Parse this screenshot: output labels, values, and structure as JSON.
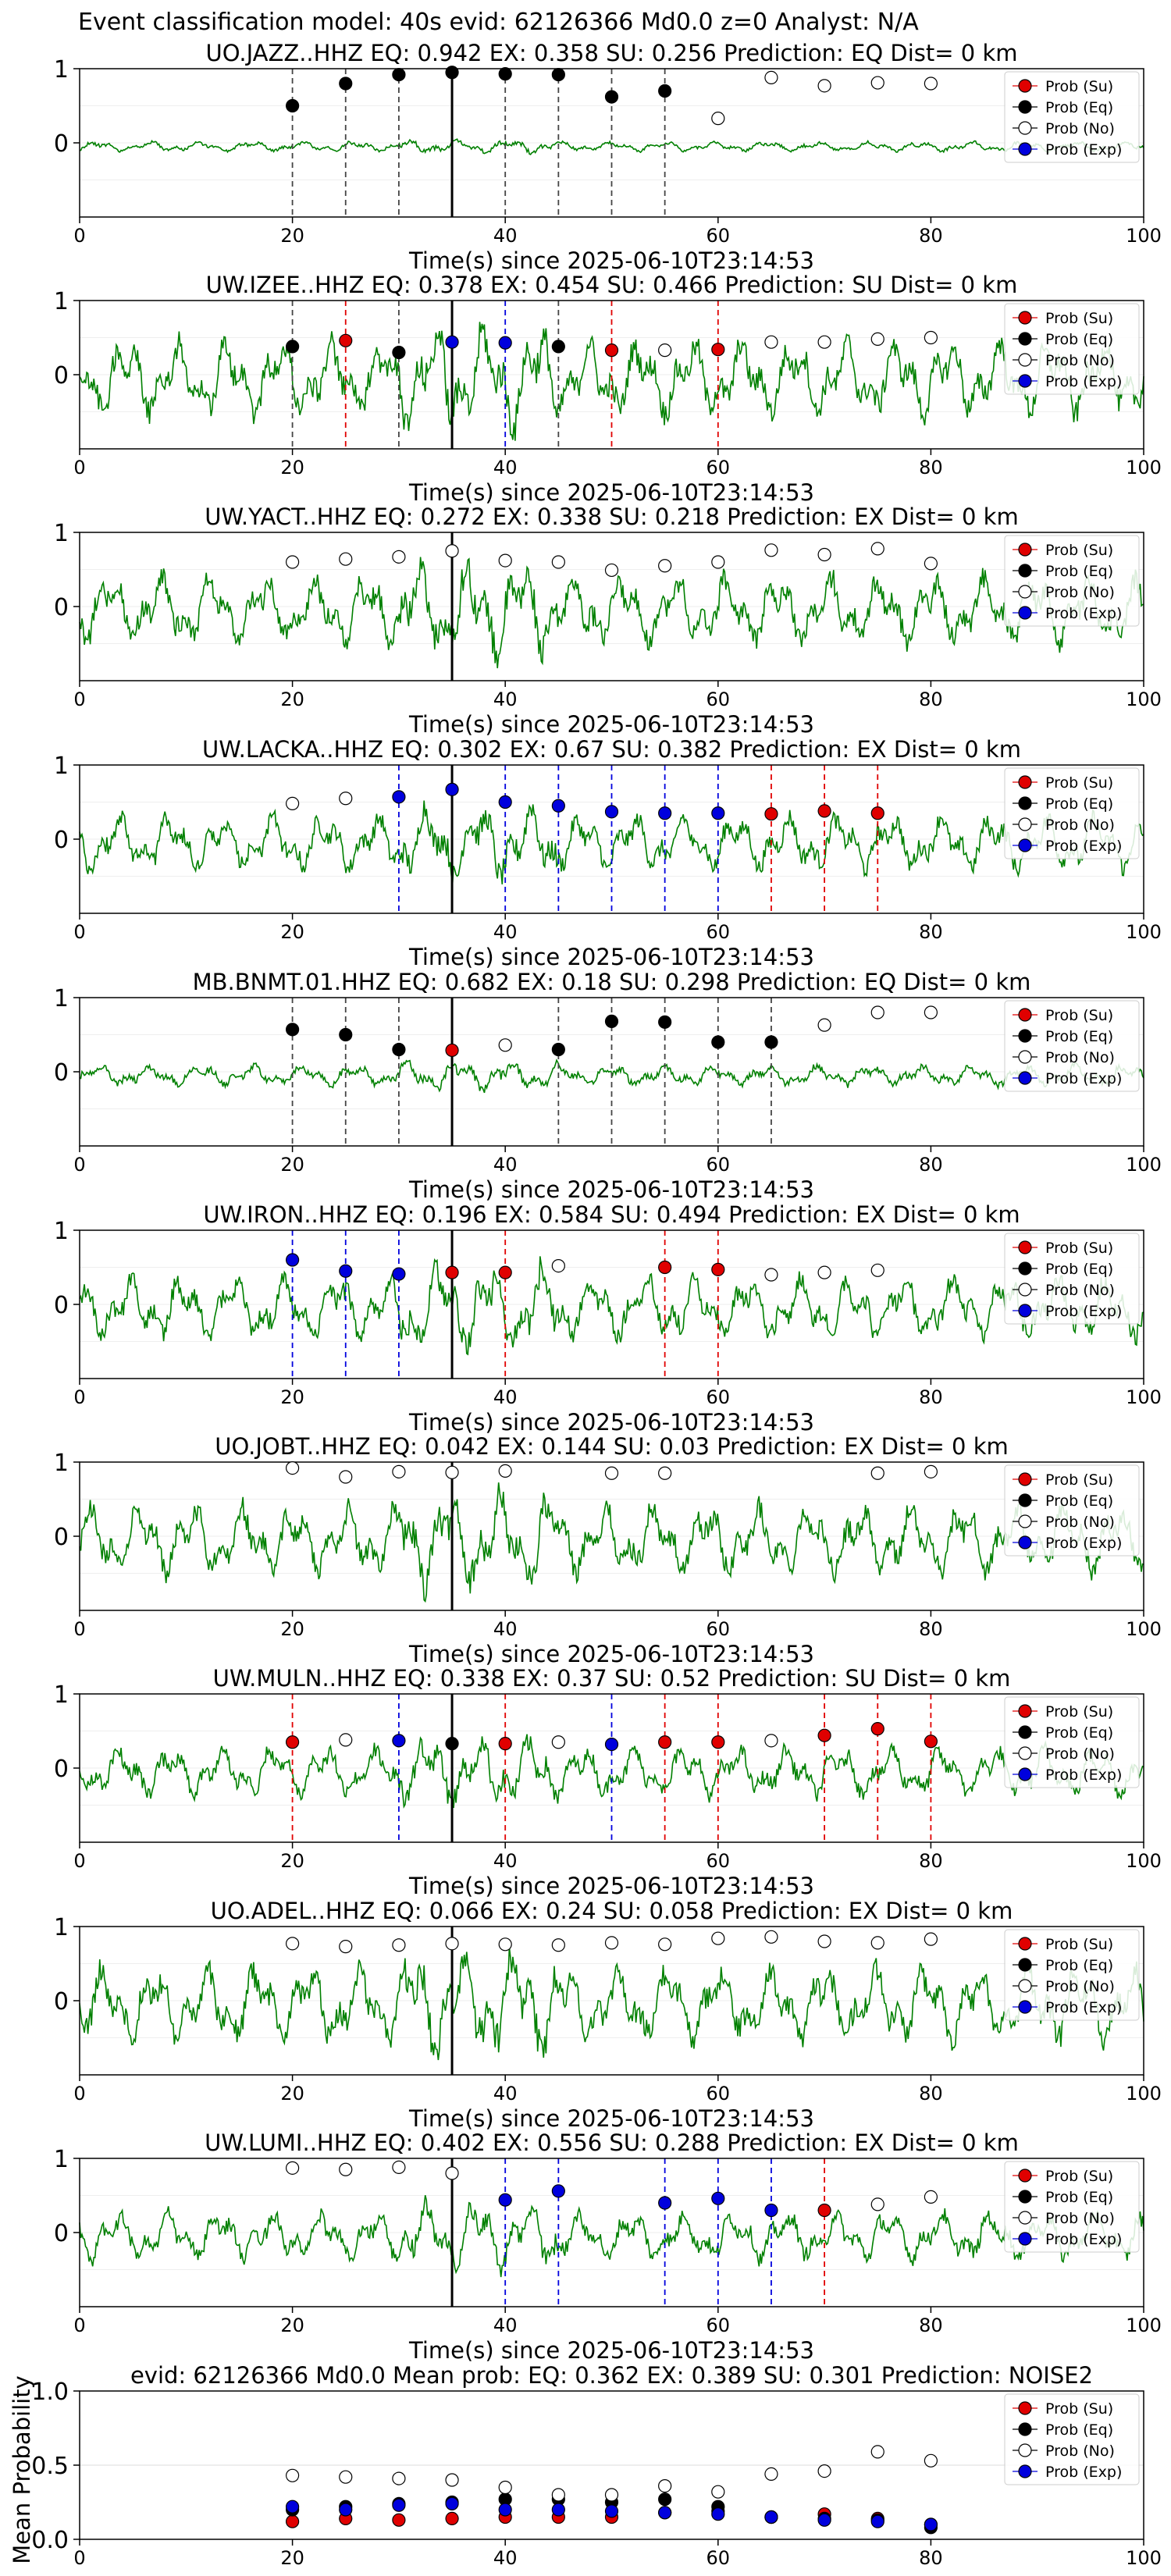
{
  "figure_title": "Event classification model: 40s evid: 62126366 Md0.0 z=0 Analyst: N/A",
  "legend_labels": [
    "Prob (Su)",
    "Prob (Eq)",
    "Prob (No)",
    "Prob (Exp)"
  ],
  "colors": {
    "su": "#e00000",
    "eq": "#000000",
    "no": "#ffffff",
    "exp": "#0000dd",
    "trace": "#008000"
  },
  "chart_data": [
    {
      "type": "line",
      "title": "UO.JAZZ..HHZ   EQ: 0.942  EX: 0.358  SU: 0.256   Prediction: EQ    Dist= 0 km",
      "xlabel": "Time(s) since 2025-06-10T23:14:53",
      "xlim": [
        0,
        100
      ],
      "ylim": [
        -1,
        1
      ],
      "xticks": [
        "0",
        "20",
        "40",
        "60",
        "80",
        "100"
      ],
      "yticks": [
        "1",
        "0"
      ],
      "amp": 0.07,
      "seed": 11,
      "eq": [
        [
          20,
          0.5
        ],
        [
          25,
          0.8
        ],
        [
          30,
          0.92
        ],
        [
          35,
          0.95
        ],
        [
          40,
          0.93
        ],
        [
          45,
          0.92
        ],
        [
          50,
          0.62
        ],
        [
          55,
          0.7
        ]
      ],
      "no": [
        [
          60,
          0.33
        ],
        [
          65,
          0.88
        ],
        [
          70,
          0.77
        ],
        [
          75,
          0.81
        ],
        [
          80,
          0.8
        ]
      ],
      "su": [],
      "exp": [],
      "vlines": [
        [
          20,
          "eq"
        ],
        [
          25,
          "eq"
        ],
        [
          30,
          "eq"
        ],
        [
          40,
          "eq"
        ],
        [
          45,
          "eq"
        ],
        [
          50,
          "eq"
        ],
        [
          55,
          "eq"
        ]
      ]
    },
    {
      "type": "line",
      "title": "UW.IZEE..HHZ   EQ: 0.378  EX: 0.454  SU: 0.466   Prediction: SU    Dist= 0 km",
      "xlabel": "Time(s) since 2025-06-10T23:14:53",
      "xlim": [
        0,
        100
      ],
      "ylim": [
        -1,
        1
      ],
      "xticks": [
        "0",
        "20",
        "40",
        "60",
        "80",
        "100"
      ],
      "yticks": [
        "1",
        "0"
      ],
      "amp": 0.55,
      "seed": 23,
      "eq": [
        [
          20,
          0.38
        ],
        [
          30,
          0.3
        ],
        [
          45,
          0.38
        ]
      ],
      "su": [
        [
          25,
          0.46
        ],
        [
          50,
          0.33
        ],
        [
          60,
          0.34
        ]
      ],
      "exp": [
        [
          35,
          0.44
        ],
        [
          40,
          0.43
        ]
      ],
      "no": [
        [
          55,
          0.33
        ],
        [
          65,
          0.44
        ],
        [
          70,
          0.44
        ],
        [
          75,
          0.48
        ],
        [
          80,
          0.5
        ]
      ],
      "vlines": [
        [
          20,
          "eq"
        ],
        [
          25,
          "su"
        ],
        [
          30,
          "eq"
        ],
        [
          40,
          "exp"
        ],
        [
          45,
          "eq"
        ],
        [
          50,
          "su"
        ],
        [
          60,
          "su"
        ]
      ]
    },
    {
      "type": "line",
      "title": "UW.YACT..HHZ   EQ: 0.272  EX: 0.338  SU: 0.218   Prediction: EX    Dist= 0 km",
      "xlabel": "Time(s) since 2025-06-10T23:14:53",
      "xlim": [
        0,
        100
      ],
      "ylim": [
        -1,
        1
      ],
      "xticks": [
        "0",
        "20",
        "40",
        "60",
        "80",
        "100"
      ],
      "yticks": [
        "1",
        "0"
      ],
      "amp": 0.5,
      "seed": 37,
      "no": [
        [
          20,
          0.6
        ],
        [
          25,
          0.64
        ],
        [
          30,
          0.67
        ],
        [
          35,
          0.75
        ],
        [
          40,
          0.62
        ],
        [
          45,
          0.6
        ],
        [
          50,
          0.49
        ],
        [
          55,
          0.55
        ],
        [
          60,
          0.6
        ],
        [
          65,
          0.76
        ],
        [
          70,
          0.7
        ],
        [
          75,
          0.78
        ],
        [
          80,
          0.58
        ]
      ],
      "eq": [],
      "su": [],
      "exp": [],
      "vlines": []
    },
    {
      "type": "line",
      "title": "UW.LACKA..HHZ   EQ: 0.302  EX: 0.67  SU: 0.382   Prediction: EX    Dist= 0 km",
      "xlabel": "Time(s) since 2025-06-10T23:14:53",
      "xlim": [
        0,
        100
      ],
      "ylim": [
        -1,
        1
      ],
      "xticks": [
        "0",
        "20",
        "40",
        "60",
        "80",
        "100"
      ],
      "yticks": [
        "1",
        "0"
      ],
      "amp": 0.4,
      "seed": 41,
      "no": [
        [
          20,
          0.48
        ],
        [
          25,
          0.55
        ]
      ],
      "exp": [
        [
          30,
          0.57
        ],
        [
          35,
          0.67
        ],
        [
          40,
          0.5
        ],
        [
          45,
          0.45
        ],
        [
          50,
          0.37
        ],
        [
          55,
          0.35
        ],
        [
          60,
          0.35
        ]
      ],
      "su": [
        [
          65,
          0.34
        ],
        [
          70,
          0.38
        ],
        [
          75,
          0.35
        ]
      ],
      "eq": [],
      "vlines": [
        [
          30,
          "exp"
        ],
        [
          40,
          "exp"
        ],
        [
          45,
          "exp"
        ],
        [
          50,
          "exp"
        ],
        [
          55,
          "exp"
        ],
        [
          60,
          "exp"
        ],
        [
          65,
          "su"
        ],
        [
          70,
          "su"
        ],
        [
          75,
          "su"
        ]
      ]
    },
    {
      "type": "line",
      "title": "MB.BNMT.01.HHZ   EQ: 0.682  EX: 0.18  SU: 0.298   Prediction: EQ    Dist= 0 km",
      "xlabel": "Time(s) since 2025-06-10T23:14:53",
      "xlim": [
        0,
        100
      ],
      "ylim": [
        -1,
        1
      ],
      "xticks": [
        "0",
        "20",
        "40",
        "60",
        "80",
        "100"
      ],
      "yticks": [
        "1",
        "0"
      ],
      "amp": 0.15,
      "seed": 53,
      "eq": [
        [
          20,
          0.57
        ],
        [
          25,
          0.5
        ],
        [
          30,
          0.3
        ],
        [
          45,
          0.3
        ],
        [
          50,
          0.68
        ],
        [
          55,
          0.67
        ],
        [
          60,
          0.4
        ],
        [
          65,
          0.4
        ]
      ],
      "su": [
        [
          35,
          0.29
        ]
      ],
      "no": [
        [
          40,
          0.36
        ],
        [
          70,
          0.63
        ],
        [
          75,
          0.8
        ],
        [
          80,
          0.8
        ]
      ],
      "exp": [],
      "vlines": [
        [
          20,
          "eq"
        ],
        [
          25,
          "eq"
        ],
        [
          30,
          "eq"
        ],
        [
          45,
          "eq"
        ],
        [
          50,
          "eq"
        ],
        [
          55,
          "eq"
        ],
        [
          60,
          "eq"
        ],
        [
          65,
          "eq"
        ]
      ]
    },
    {
      "type": "line",
      "title": "UW.IRON..HHZ   EQ: 0.196  EX: 0.584  SU: 0.494   Prediction: EX    Dist= 0 km",
      "xlabel": "Time(s) since 2025-06-10T23:14:53",
      "xlim": [
        0,
        100
      ],
      "ylim": [
        -1,
        1
      ],
      "xticks": [
        "0",
        "20",
        "40",
        "60",
        "80",
        "100"
      ],
      "yticks": [
        "1",
        "0"
      ],
      "amp": 0.45,
      "seed": 67,
      "exp": [
        [
          20,
          0.6
        ],
        [
          25,
          0.45
        ],
        [
          30,
          0.41
        ]
      ],
      "su": [
        [
          35,
          0.43
        ],
        [
          40,
          0.43
        ],
        [
          55,
          0.5
        ],
        [
          60,
          0.47
        ]
      ],
      "no": [
        [
          45,
          0.52
        ],
        [
          65,
          0.4
        ],
        [
          70,
          0.43
        ],
        [
          75,
          0.46
        ]
      ],
      "eq": [],
      "vlines": [
        [
          20,
          "exp"
        ],
        [
          25,
          "exp"
        ],
        [
          30,
          "exp"
        ],
        [
          40,
          "su"
        ],
        [
          55,
          "su"
        ],
        [
          60,
          "su"
        ]
      ]
    },
    {
      "type": "line",
      "title": "UO.JOBT..HHZ   EQ: 0.042  EX: 0.144  SU: 0.03   Prediction: EX    Dist= 0 km",
      "xlabel": "Time(s) since 2025-06-10T23:14:53",
      "xlim": [
        0,
        100
      ],
      "ylim": [
        -1,
        1
      ],
      "xticks": [
        "0",
        "20",
        "40",
        "60",
        "80",
        "100"
      ],
      "yticks": [
        "1",
        "0"
      ],
      "amp": 0.5,
      "seed": 71,
      "no": [
        [
          20,
          0.92
        ],
        [
          25,
          0.8
        ],
        [
          30,
          0.87
        ],
        [
          35,
          0.86
        ],
        [
          40,
          0.88
        ],
        [
          50,
          0.85
        ],
        [
          55,
          0.85
        ],
        [
          75,
          0.85
        ],
        [
          80,
          0.87
        ]
      ],
      "eq": [],
      "su": [],
      "exp": [],
      "vlines": []
    },
    {
      "type": "line",
      "title": "UW.MULN..HHZ   EQ: 0.338  EX: 0.37  SU: 0.52   Prediction: SU    Dist= 0 km",
      "xlabel": "Time(s) since 2025-06-10T23:14:53",
      "xlim": [
        0,
        100
      ],
      "ylim": [
        -1,
        1
      ],
      "xticks": [
        "0",
        "20",
        "40",
        "60",
        "80",
        "100"
      ],
      "yticks": [
        "1",
        "0"
      ],
      "amp": 0.35,
      "seed": 83,
      "su": [
        [
          20,
          0.35
        ],
        [
          40,
          0.33
        ],
        [
          55,
          0.35
        ],
        [
          60,
          0.35
        ],
        [
          70,
          0.44
        ],
        [
          75,
          0.53
        ],
        [
          80,
          0.36
        ]
      ],
      "no": [
        [
          25,
          0.38
        ],
        [
          45,
          0.35
        ],
        [
          65,
          0.37
        ]
      ],
      "exp": [
        [
          30,
          0.37
        ],
        [
          50,
          0.32
        ]
      ],
      "eq": [
        [
          35,
          0.33
        ]
      ],
      "vlines": [
        [
          20,
          "su"
        ],
        [
          30,
          "exp"
        ],
        [
          40,
          "su"
        ],
        [
          50,
          "exp"
        ],
        [
          55,
          "su"
        ],
        [
          60,
          "su"
        ],
        [
          70,
          "su"
        ],
        [
          75,
          "su"
        ],
        [
          80,
          "su"
        ]
      ]
    },
    {
      "type": "line",
      "title": "UO.ADEL..HHZ   EQ: 0.066  EX: 0.24  SU: 0.058   Prediction: EX    Dist= 0 km",
      "xlabel": "Time(s) since 2025-06-10T23:14:53",
      "xlim": [
        0,
        100
      ],
      "ylim": [
        -1,
        1
      ],
      "xticks": [
        "0",
        "20",
        "40",
        "60",
        "80",
        "100"
      ],
      "yticks": [
        "1",
        "0"
      ],
      "amp": 0.55,
      "seed": 97,
      "no": [
        [
          20,
          0.77
        ],
        [
          25,
          0.73
        ],
        [
          30,
          0.75
        ],
        [
          35,
          0.77
        ],
        [
          40,
          0.76
        ],
        [
          45,
          0.75
        ],
        [
          50,
          0.78
        ],
        [
          55,
          0.76
        ],
        [
          60,
          0.84
        ],
        [
          65,
          0.86
        ],
        [
          70,
          0.8
        ],
        [
          75,
          0.78
        ],
        [
          80,
          0.83
        ]
      ],
      "eq": [],
      "su": [],
      "exp": [],
      "vlines": []
    },
    {
      "type": "line",
      "title": "UW.LUMI..HHZ   EQ: 0.402  EX: 0.556  SU: 0.288   Prediction: EX    Dist= 0 km",
      "xlabel": "Time(s) since 2025-06-10T23:14:53",
      "xlim": [
        0,
        100
      ],
      "ylim": [
        -1,
        1
      ],
      "xticks": [
        "0",
        "20",
        "40",
        "60",
        "80",
        "100"
      ],
      "yticks": [
        "1",
        "0"
      ],
      "amp": 0.35,
      "seed": 103,
      "no": [
        [
          20,
          0.87
        ],
        [
          25,
          0.85
        ],
        [
          30,
          0.88
        ],
        [
          35,
          0.8
        ],
        [
          75,
          0.38
        ],
        [
          80,
          0.48
        ]
      ],
      "exp": [
        [
          40,
          0.44
        ],
        [
          45,
          0.56
        ],
        [
          55,
          0.4
        ],
        [
          60,
          0.46
        ],
        [
          65,
          0.3
        ]
      ],
      "su": [
        [
          70,
          0.3
        ]
      ],
      "eq": [],
      "vlines": [
        [
          40,
          "exp"
        ],
        [
          45,
          "exp"
        ],
        [
          55,
          "exp"
        ],
        [
          60,
          "exp"
        ],
        [
          65,
          "exp"
        ],
        [
          70,
          "su"
        ]
      ]
    },
    {
      "type": "scatter",
      "title": "evid: 62126366  Md0.0   Mean prob:   EQ: 0.362  EX: 0.389  SU: 0.301   Prediction: NOISE2",
      "ylabel": "Mean Probability",
      "xlim": [
        0,
        100
      ],
      "ylim": [
        0,
        1
      ],
      "xticks": [
        "0",
        "20",
        "40",
        "60",
        "80",
        "100"
      ],
      "yticks": [
        "0.0",
        "0.5",
        "1.0"
      ],
      "grid": true,
      "no": [
        [
          20,
          0.43
        ],
        [
          25,
          0.42
        ],
        [
          30,
          0.41
        ],
        [
          35,
          0.4
        ],
        [
          40,
          0.35
        ],
        [
          45,
          0.3
        ],
        [
          50,
          0.3
        ],
        [
          55,
          0.36
        ],
        [
          60,
          0.32
        ],
        [
          65,
          0.44
        ],
        [
          70,
          0.46
        ],
        [
          75,
          0.59
        ],
        [
          80,
          0.53
        ]
      ],
      "eq": [
        [
          20,
          0.2
        ],
        [
          25,
          0.22
        ],
        [
          30,
          0.24
        ],
        [
          35,
          0.25
        ],
        [
          40,
          0.27
        ],
        [
          45,
          0.27
        ],
        [
          50,
          0.25
        ],
        [
          55,
          0.27
        ],
        [
          60,
          0.22
        ],
        [
          65,
          0.15
        ],
        [
          70,
          0.14
        ],
        [
          75,
          0.13
        ],
        [
          80,
          0.08
        ]
      ],
      "exp": [
        [
          20,
          0.22
        ],
        [
          25,
          0.2
        ],
        [
          30,
          0.23
        ],
        [
          35,
          0.24
        ],
        [
          40,
          0.2
        ],
        [
          45,
          0.2
        ],
        [
          50,
          0.19
        ],
        [
          55,
          0.18
        ],
        [
          60,
          0.17
        ],
        [
          65,
          0.15
        ],
        [
          70,
          0.13
        ],
        [
          75,
          0.12
        ],
        [
          80,
          0.1
        ]
      ],
      "su": [
        [
          20,
          0.12
        ],
        [
          25,
          0.14
        ],
        [
          30,
          0.13
        ],
        [
          35,
          0.14
        ],
        [
          40,
          0.15
        ],
        [
          45,
          0.15
        ],
        [
          50,
          0.15
        ],
        [
          55,
          0.18
        ],
        [
          60,
          0.19
        ],
        [
          65,
          0.15
        ],
        [
          70,
          0.17
        ],
        [
          75,
          0.14
        ],
        [
          80,
          0.1
        ]
      ]
    }
  ]
}
